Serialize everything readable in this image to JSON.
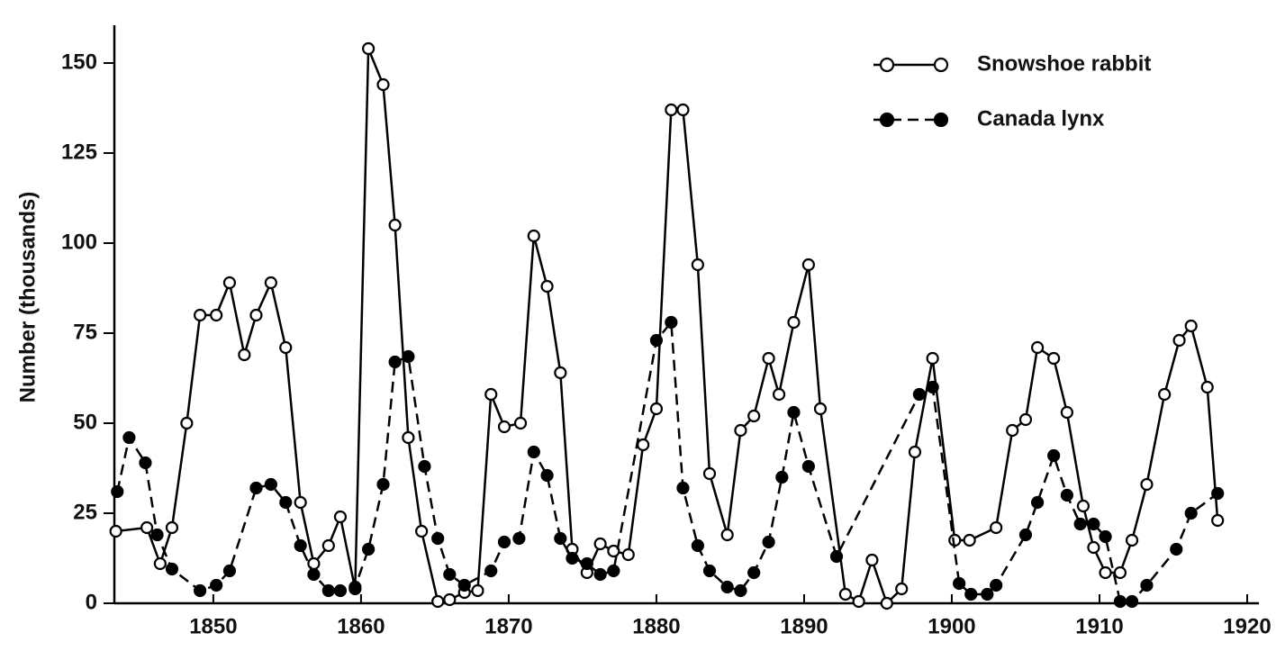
{
  "chart_data": {
    "type": "line",
    "y_label": "Number (thousands)",
    "xlim": [
      1843.3,
      1920
    ],
    "xticks": [
      1850,
      1860,
      1870,
      1880,
      1890,
      1900,
      1910,
      1920
    ],
    "ylim": [
      0,
      160
    ],
    "yticks": [
      0,
      25,
      50,
      75,
      100,
      125,
      150
    ],
    "grid": false,
    "legend": "top-right",
    "series": [
      {
        "name": "Snowshoe rabbit",
        "color": "#000000",
        "linestyle": "solid",
        "marker": "open",
        "x": [
          1843.4,
          1845.5,
          1846.4,
          1847.2,
          1848.2,
          1849.1,
          1850.2,
          1851.1,
          1852.1,
          1852.9,
          1853.9,
          1854.9,
          1855.9,
          1856.8,
          1857.8,
          1858.6,
          1859.6,
          1860.5,
          1861.5,
          1862.3,
          1863.2,
          1864.1,
          1865.2,
          1866.0,
          1867.0,
          1867.9,
          1868.8,
          1869.7,
          1870.8,
          1871.7,
          1872.6,
          1873.5,
          1874.3,
          1875.3,
          1876.2,
          1877.1,
          1878.1,
          1879.1,
          1880.0,
          1881.0,
          1881.8,
          1882.8,
          1883.6,
          1884.8,
          1885.7,
          1886.6,
          1887.6,
          1888.3,
          1889.3,
          1890.3,
          1891.1,
          1892.8,
          1893.7,
          1894.6,
          1895.6,
          1896.6,
          1897.5,
          1898.7,
          1900.2,
          1901.2,
          1903.0,
          1904.1,
          1905.0,
          1905.8,
          1906.9,
          1907.8,
          1908.9,
          1909.6,
          1910.4,
          1911.4,
          1912.2,
          1913.2,
          1914.4,
          1915.4,
          1916.2,
          1917.3,
          1918.0
        ],
        "values": [
          20,
          21,
          11,
          21,
          50,
          80,
          80,
          89,
          69,
          80,
          89,
          71,
          28,
          11,
          16,
          24,
          4,
          154,
          144,
          105,
          46,
          20,
          0.5,
          1,
          3,
          3.5,
          58,
          49,
          50,
          102,
          88,
          64,
          15,
          8.5,
          16.5,
          14.5,
          13.5,
          44,
          54,
          137,
          137,
          94,
          36,
          19,
          48,
          52,
          68,
          58,
          78,
          94,
          54,
          2.5,
          0.5,
          12,
          0,
          4,
          42,
          68,
          17.5,
          17.5,
          21,
          48,
          51,
          71,
          68,
          53,
          27,
          15.5,
          8.5,
          8.5,
          17.5,
          33,
          58,
          73,
          77,
          60,
          23
        ]
      },
      {
        "name": "Canada lynx",
        "color": "#000000",
        "linestyle": "dashed",
        "marker": "filled",
        "x": [
          1843.5,
          1844.3,
          1845.4,
          1846.2,
          1847.2,
          1849.1,
          1850.2,
          1851.1,
          1852.9,
          1853.9,
          1854.9,
          1855.9,
          1856.8,
          1857.8,
          1858.6,
          1859.6,
          1860.5,
          1861.5,
          1862.3,
          1863.2,
          1864.3,
          1865.2,
          1866.0,
          1867.0,
          1868.8,
          1869.7,
          1870.7,
          1871.7,
          1872.6,
          1873.5,
          1874.3,
          1875.3,
          1876.2,
          1877.1,
          1880.0,
          1881.0,
          1881.8,
          1882.8,
          1883.6,
          1884.8,
          1885.7,
          1886.6,
          1887.6,
          1888.5,
          1889.3,
          1890.3,
          1892.2,
          1897.8,
          1898.7,
          1900.5,
          1901.3,
          1902.4,
          1903.0,
          1905.0,
          1905.8,
          1906.9,
          1907.8,
          1908.7,
          1909.6,
          1910.4,
          1911.4,
          1912.2,
          1913.2,
          1915.2,
          1916.2,
          1918.0
        ],
        "values": [
          31,
          46,
          39,
          19,
          9.5,
          3.5,
          5,
          9,
          32,
          33,
          28,
          16,
          8,
          3.5,
          3.5,
          4.5,
          15,
          33,
          67,
          68.5,
          38,
          18,
          8,
          5,
          9,
          17,
          18,
          42,
          35.5,
          18,
          12.5,
          11,
          8,
          9,
          73,
          78,
          32,
          16,
          9,
          4.5,
          3.5,
          8.5,
          17,
          35,
          53,
          38,
          13,
          58,
          60,
          5.5,
          2.5,
          2.5,
          5,
          19,
          28,
          41,
          30,
          22,
          22,
          18.5,
          0.5,
          0.5,
          5,
          15,
          25,
          30.5
        ]
      }
    ]
  }
}
